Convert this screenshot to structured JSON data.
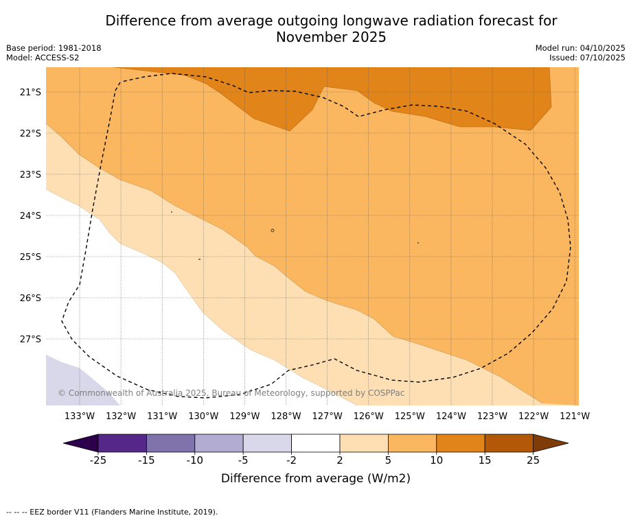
{
  "title_line1": "Difference from average outgoing longwave radiation forecast for",
  "title_line2": "November 2025",
  "base_period": "Base period: 1981-2018",
  "model": "Model: ACCESS-S2",
  "model_run": "Model run: 04/10/2025",
  "issued": "Issued: 07/10/2025",
  "copyright": "© Commonwealth of Australia 2025, Bureau of Meteorology, supported by COSPPac",
  "footer_note": "--  --  -- EEZ border V11 (Flanders Marine Institute, 2019).",
  "colors": {
    "c_15_25": "#E1841A",
    "c_10_15": "#E1841A",
    "c_5_10": "#FBB660",
    "c_2_5": "#FDDFB3",
    "c_m2_2": "#FFFFFF",
    "c_m5_m2": "#D8D8EA",
    "c_m10_m5": "#B2ABD2",
    "c_m15_m10": "#8073AC",
    "c_m25_m15": "#542788",
    "c_under": "#2D004B",
    "c_over": "#7F3B08",
    "c_15_25_bar": "#B35806"
  },
  "map": {
    "lat_labels": [
      "21°S",
      "22°S",
      "23°S",
      "24°S",
      "25°S",
      "26°S",
      "27°S"
    ],
    "lon_labels": [
      "133°W",
      "132°W",
      "131°W",
      "130°W",
      "129°W",
      "128°W",
      "127°W",
      "126°W",
      "125°W",
      "124°W",
      "123°W",
      "122°W",
      "121°W"
    ]
  },
  "colorbar": {
    "title": "Difference from average (W/m2)",
    "ticks": [
      "-25",
      "-15",
      "-10",
      "-5",
      "-2",
      "2",
      "5",
      "10",
      "15",
      "25"
    ],
    "bins": [
      "#542788",
      "#8073AC",
      "#B2ABD2",
      "#D8D8EA",
      "#FFFFFF",
      "#FDDFB3",
      "#FBB660",
      "#E1841A",
      "#B35806"
    ],
    "under_color": "#2D004B",
    "over_color": "#7F3B08"
  }
}
